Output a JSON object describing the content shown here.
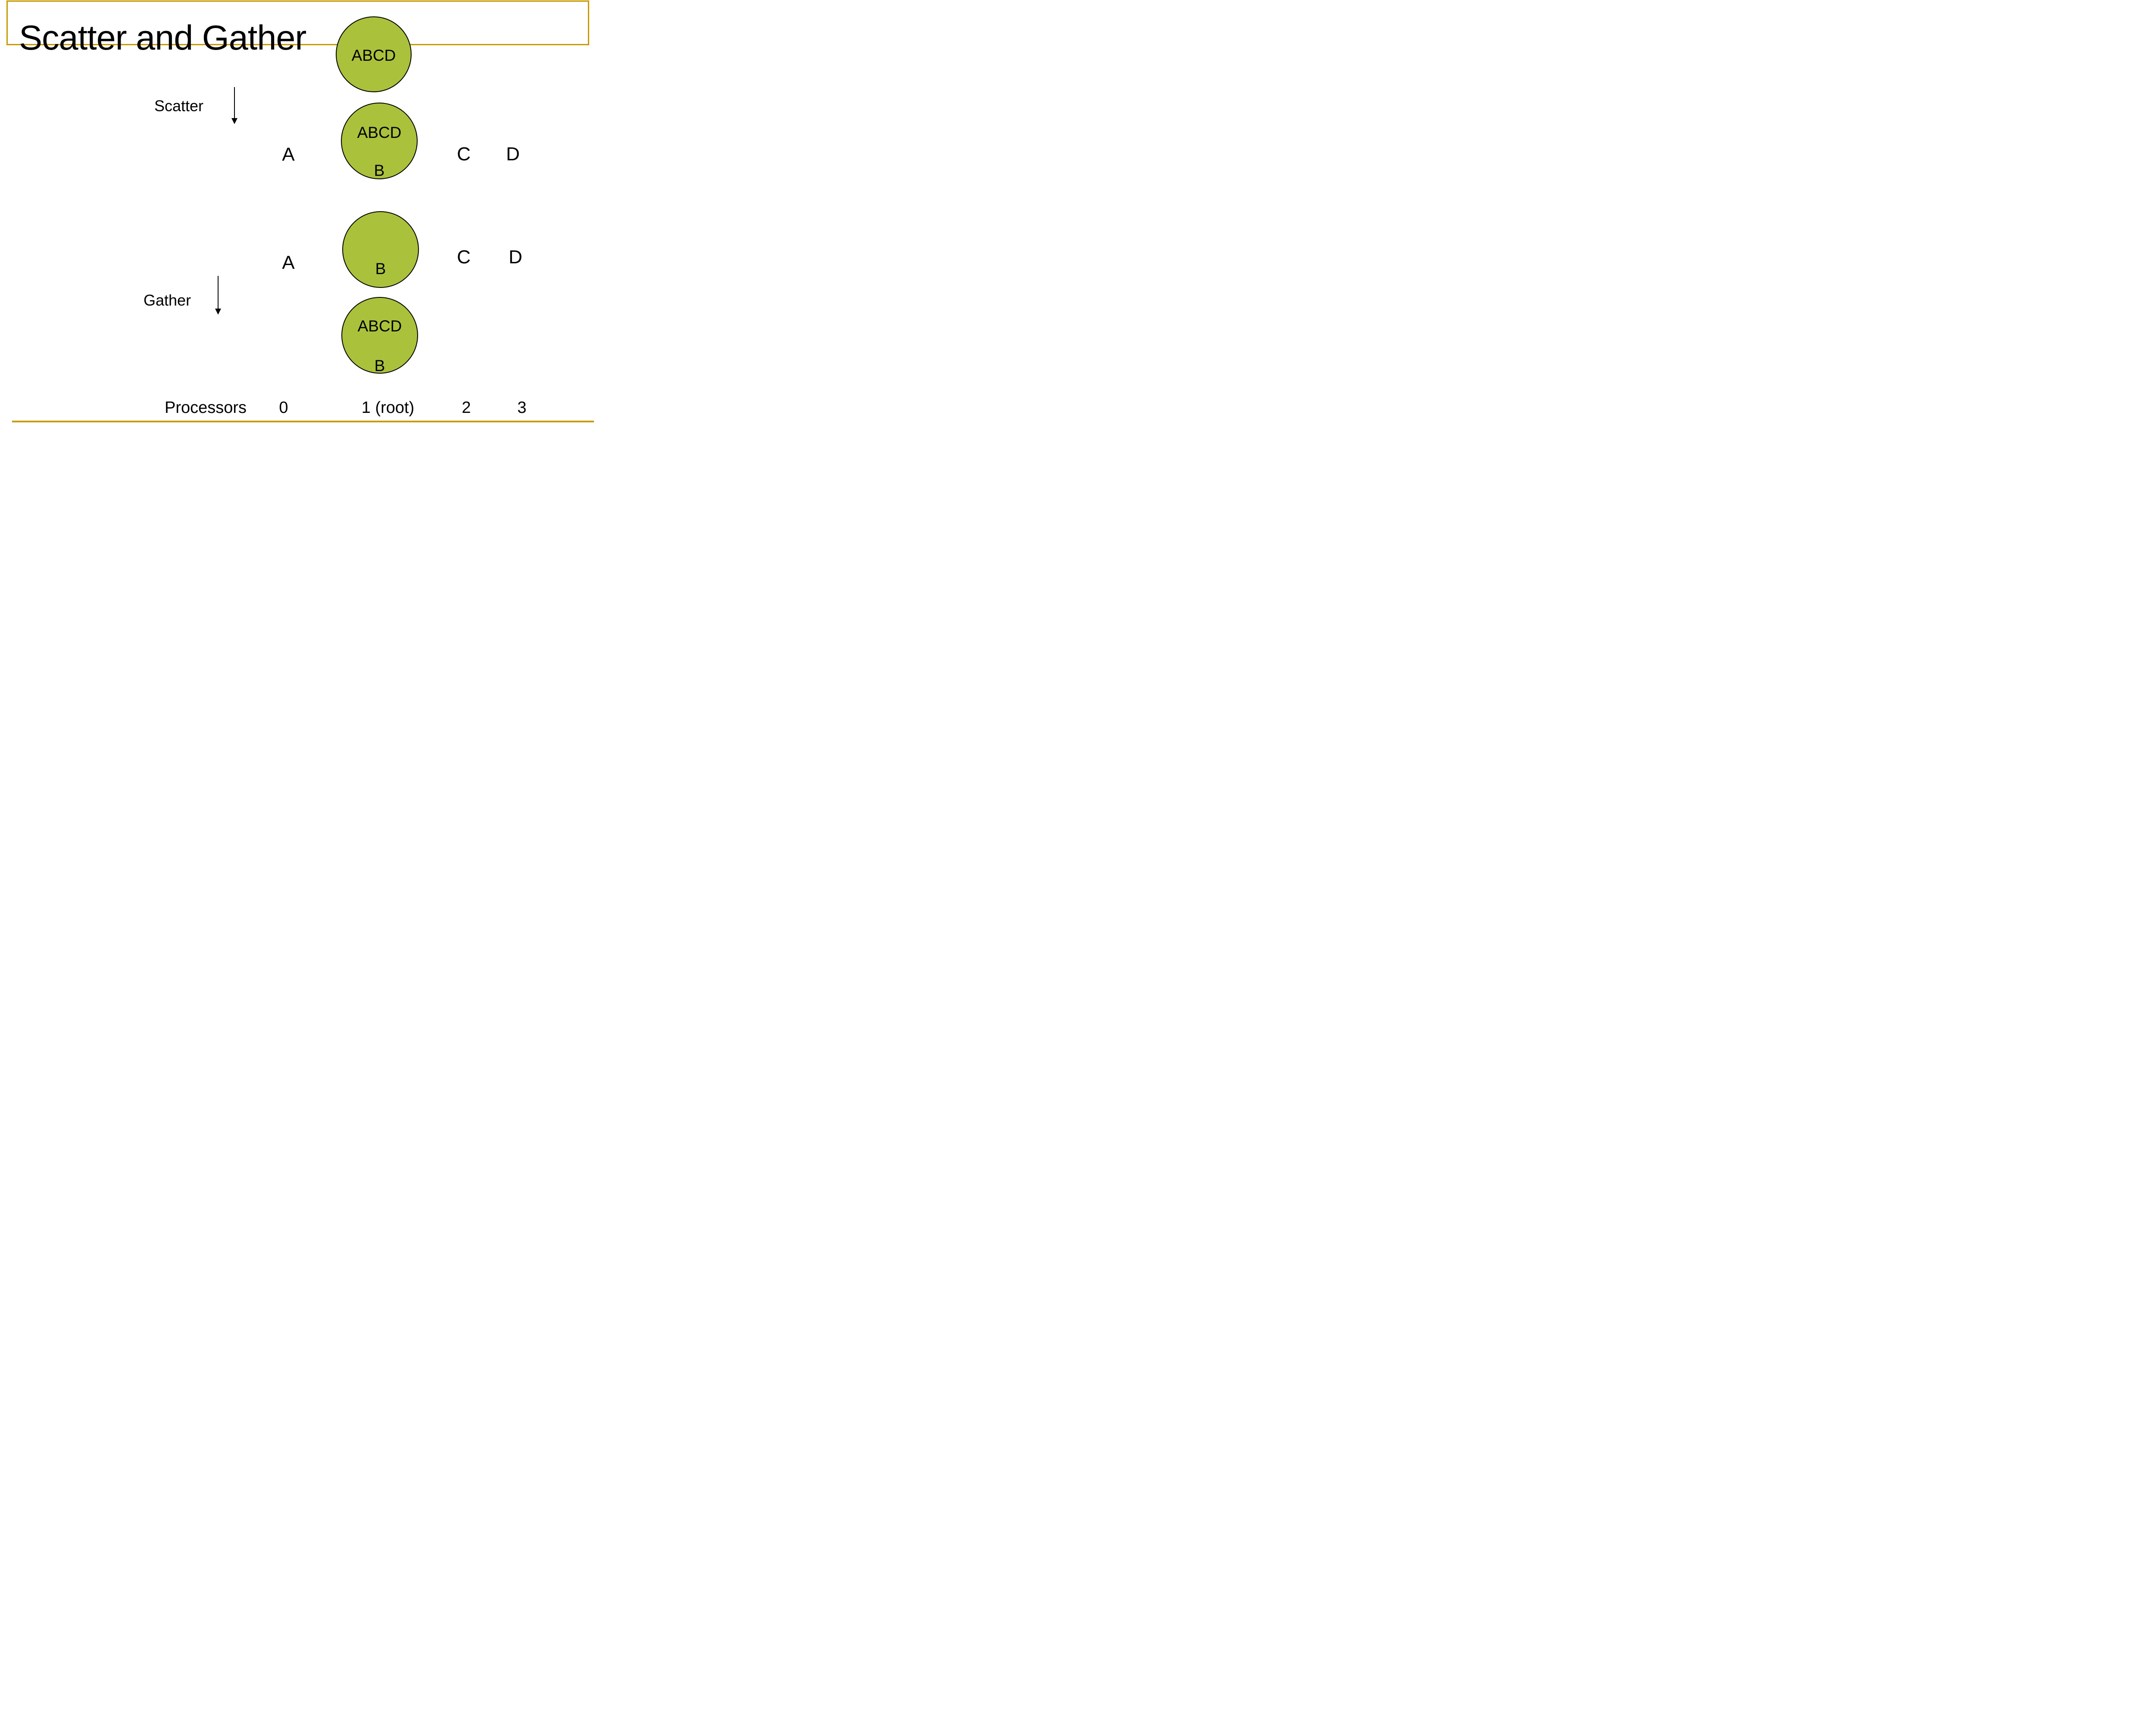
{
  "title": "Scatter and Gather",
  "colors": {
    "background": "#FFFFFF",
    "accent_gold": "#C79A02",
    "circle_fill": "#AAC13C",
    "circle_border": "#000000",
    "text": "#000000"
  },
  "operations": {
    "scatter_label": "Scatter",
    "gather_label": "Gather"
  },
  "circles": {
    "root_data": {
      "line1": "ABCD"
    },
    "after_scatter": {
      "line1": "ABCD",
      "line2": "B"
    },
    "before_gather": {
      "line1": "B"
    },
    "after_gather": {
      "line1": "ABCD",
      "line2": "B"
    }
  },
  "scatter_row": {
    "p0": "A",
    "p2": "C",
    "p3": "D"
  },
  "gather_row": {
    "p0": "A",
    "p2": "C",
    "p3": "D"
  },
  "processors_row": {
    "label": "Processors",
    "p0": "0",
    "p1": "1 (root)",
    "p2": "2",
    "p3": "3"
  }
}
